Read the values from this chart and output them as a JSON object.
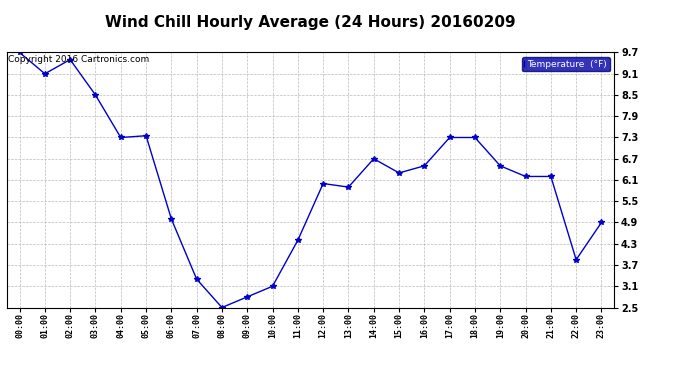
{
  "title": "Wind Chill Hourly Average (24 Hours) 20160209",
  "copyright": "Copyright 2016 Cartronics.com",
  "legend_label": "Temperature  (°F)",
  "x_labels": [
    "00:00",
    "01:00",
    "02:00",
    "03:00",
    "04:00",
    "05:00",
    "06:00",
    "07:00",
    "08:00",
    "09:00",
    "10:00",
    "11:00",
    "12:00",
    "13:00",
    "14:00",
    "15:00",
    "16:00",
    "17:00",
    "18:00",
    "19:00",
    "20:00",
    "21:00",
    "22:00",
    "23:00"
  ],
  "y_values": [
    9.7,
    9.1,
    9.5,
    8.5,
    7.3,
    7.35,
    5.0,
    3.3,
    2.5,
    2.8,
    3.1,
    4.4,
    6.0,
    5.9,
    6.7,
    6.3,
    6.5,
    7.3,
    7.3,
    6.5,
    6.2,
    6.2,
    3.85,
    4.9
  ],
  "ylim": [
    2.5,
    9.7
  ],
  "yticks": [
    2.5,
    3.1,
    3.7,
    4.3,
    4.9,
    5.5,
    6.1,
    6.7,
    7.3,
    7.9,
    8.5,
    9.1,
    9.7
  ],
  "line_color": "#0000cc",
  "marker": "*",
  "marker_size": 4,
  "background_color": "#ffffff",
  "plot_bg_color": "#ffffff",
  "grid_color": "#bbbbbb",
  "title_fontsize": 11,
  "legend_bg_color": "#0000aa",
  "legend_text_color": "#ffffff",
  "copyright_color": "#000000",
  "copyright_fontsize": 6.5
}
